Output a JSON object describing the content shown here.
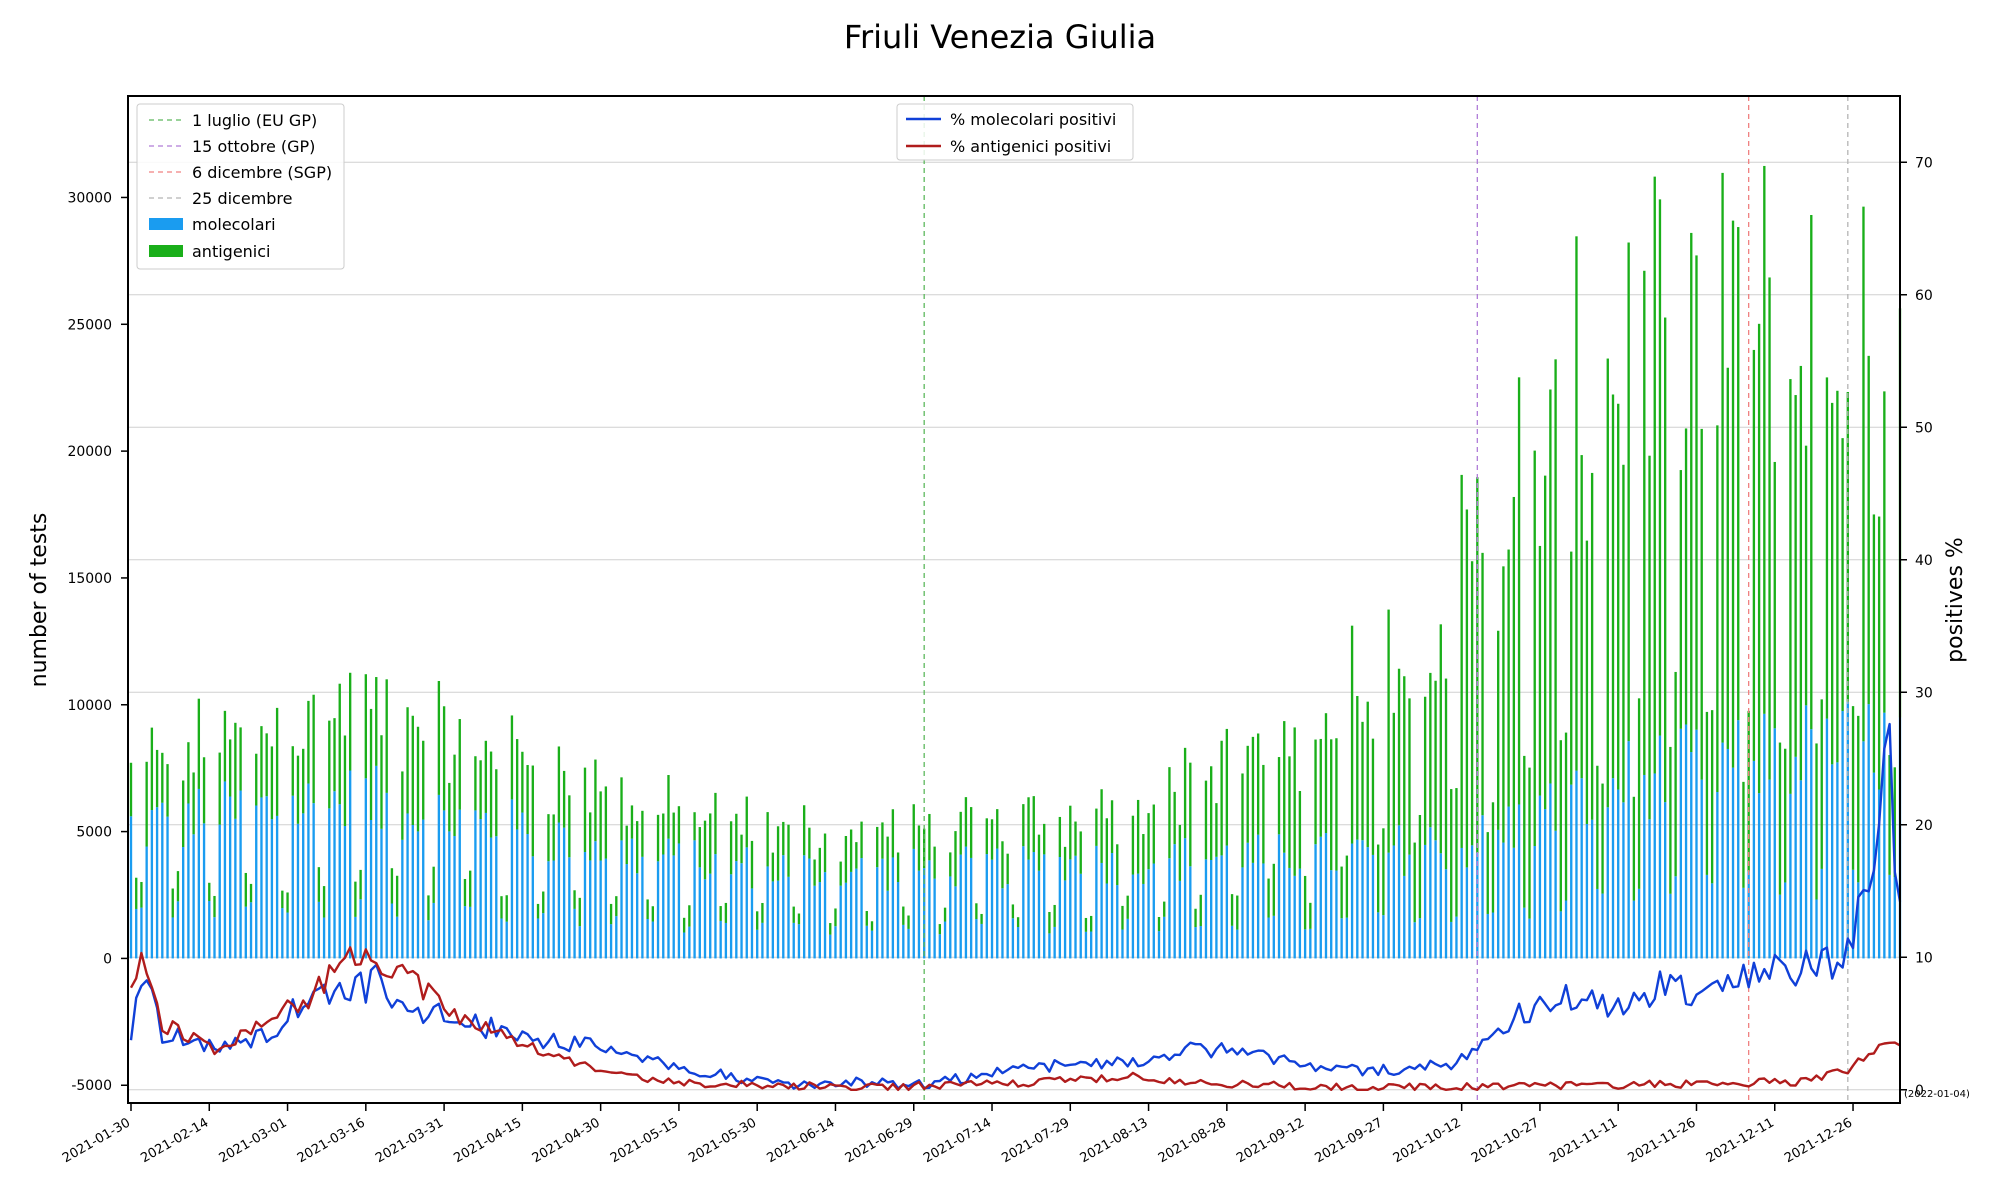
{
  "chart_data": {
    "type": "bar",
    "title": "Friuli Venezia Giulia",
    "ylabel_left": "number of tests",
    "ylabel_right": "positives %",
    "x_start_date": "2021-01-30",
    "x_end_date": "2022-01-04",
    "x_end_note": "(2022-01-04)",
    "x_ticks": [
      "2021-01-30",
      "2021-02-14",
      "2021-03-01",
      "2021-03-16",
      "2021-03-31",
      "2021-04-15",
      "2021-04-30",
      "2021-05-15",
      "2021-05-30",
      "2021-06-14",
      "2021-06-29",
      "2021-07-14",
      "2021-07-29",
      "2021-08-13",
      "2021-08-28",
      "2021-09-12",
      "2021-09-27",
      "2021-10-12",
      "2021-10-27",
      "2021-11-11",
      "2021-11-26",
      "2021-12-11",
      "2021-12-26"
    ],
    "y_left": {
      "ticks": [
        -5000,
        0,
        5000,
        10000,
        15000,
        20000,
        25000,
        30000
      ],
      "lim": [
        -5700,
        34000
      ]
    },
    "y_right": {
      "ticks": [
        0,
        10,
        20,
        30,
        40,
        50,
        60,
        70
      ],
      "lim": [
        -1,
        75
      ]
    },
    "grid": "horizontal",
    "vlines": [
      {
        "label": "1 luglio (EU GP)",
        "date": "2021-07-01",
        "color": "#5cb85c"
      },
      {
        "label": "15 ottobre (GP)",
        "date": "2021-10-15",
        "color": "#b07cd8"
      },
      {
        "label": "6 dicembre (SGP)",
        "date": "2021-12-06",
        "color": "#f08080"
      },
      {
        "label": "25 dicembre",
        "date": "2021-12-25",
        "color": "#b4b4b4"
      }
    ],
    "bar_series": [
      {
        "name": "molecolari",
        "color": "#1a9cf0"
      },
      {
        "name": "antigenici",
        "color": "#1aaf1a"
      }
    ],
    "line_series": [
      {
        "name": "% molecolari positivi",
        "color": "#1040d8"
      },
      {
        "name": "% antigenici positivi",
        "color": "#b01c1c"
      }
    ],
    "legend_left_position": "upper-left",
    "legend_right_position": "upper-center",
    "monthly_avg_molecolari": [
      [
        "2021-01-30",
        5200
      ],
      [
        "2021-02-15",
        5600
      ],
      [
        "2021-03-15",
        6200
      ],
      [
        "2021-04-15",
        5000
      ],
      [
        "2021-05-15",
        3800
      ],
      [
        "2021-06-15",
        3400
      ],
      [
        "2021-07-15",
        3600
      ],
      [
        "2021-08-15",
        3900
      ],
      [
        "2021-09-15",
        4000
      ],
      [
        "2021-10-15",
        4600
      ],
      [
        "2021-11-15",
        7200
      ],
      [
        "2021-12-15",
        8200
      ],
      [
        "2022-01-04",
        8500
      ]
    ],
    "monthly_avg_antigenici": [
      [
        "2021-01-30",
        2500
      ],
      [
        "2021-02-15",
        2800
      ],
      [
        "2021-03-15",
        3600
      ],
      [
        "2021-04-15",
        2800
      ],
      [
        "2021-05-15",
        1800
      ],
      [
        "2021-06-15",
        1500
      ],
      [
        "2021-07-15",
        1600
      ],
      [
        "2021-08-15",
        2500
      ],
      [
        "2021-09-15",
        5000
      ],
      [
        "2021-10-15",
        12000
      ],
      [
        "2021-11-15",
        17000
      ],
      [
        "2021-12-15",
        16000
      ],
      [
        "2022-01-04",
        15000
      ]
    ],
    "pct_molecolari_positivi": [
      [
        "2021-01-30",
        4
      ],
      [
        "2021-02-01",
        9
      ],
      [
        "2021-02-05",
        4
      ],
      [
        "2021-02-10",
        4
      ],
      [
        "2021-02-15",
        3
      ],
      [
        "2021-02-25",
        4
      ],
      [
        "2021-03-05",
        7
      ],
      [
        "2021-03-12",
        8
      ],
      [
        "2021-03-20",
        8
      ],
      [
        "2021-03-25",
        6
      ],
      [
        "2021-04-05",
        5
      ],
      [
        "2021-04-15",
        4
      ],
      [
        "2021-04-25",
        3.5
      ],
      [
        "2021-05-05",
        3
      ],
      [
        "2021-05-15",
        1.5
      ],
      [
        "2021-05-25",
        1
      ],
      [
        "2021-06-05",
        0.5
      ],
      [
        "2021-06-20",
        0.5
      ],
      [
        "2021-07-01",
        0.5
      ],
      [
        "2021-07-10",
        1
      ],
      [
        "2021-07-20",
        1.5
      ],
      [
        "2021-07-30",
        2
      ],
      [
        "2021-08-10",
        2
      ],
      [
        "2021-08-20",
        3
      ],
      [
        "2021-08-30",
        3
      ],
      [
        "2021-09-10",
        2
      ],
      [
        "2021-09-20",
        1.5
      ],
      [
        "2021-09-30",
        1.5
      ],
      [
        "2021-10-10",
        2
      ],
      [
        "2021-10-15",
        3
      ],
      [
        "2021-10-20",
        5
      ],
      [
        "2021-10-30",
        7
      ],
      [
        "2021-11-10",
        6
      ],
      [
        "2021-11-20",
        8
      ],
      [
        "2021-11-30",
        7
      ],
      [
        "2021-12-10",
        9
      ],
      [
        "2021-12-20",
        9
      ],
      [
        "2021-12-30",
        14
      ],
      [
        "2022-01-02",
        26
      ],
      [
        "2022-01-04",
        13
      ]
    ],
    "pct_antigenici_positivi": [
      [
        "2021-01-30",
        8
      ],
      [
        "2021-02-01",
        10
      ],
      [
        "2021-02-05",
        5
      ],
      [
        "2021-02-10",
        4
      ],
      [
        "2021-02-15",
        3
      ],
      [
        "2021-02-25",
        5
      ],
      [
        "2021-03-05",
        7
      ],
      [
        "2021-03-12",
        10
      ],
      [
        "2021-03-20",
        9
      ],
      [
        "2021-03-25",
        8
      ],
      [
        "2021-04-05",
        5
      ],
      [
        "2021-04-12",
        4
      ],
      [
        "2021-04-25",
        2
      ],
      [
        "2021-05-05",
        1
      ],
      [
        "2021-05-15",
        0.5
      ],
      [
        "2021-06-05",
        0.3
      ],
      [
        "2021-06-20",
        0.2
      ],
      [
        "2021-07-01",
        0.3
      ],
      [
        "2021-07-20",
        0.5
      ],
      [
        "2021-08-10",
        1
      ],
      [
        "2021-08-20",
        0.5
      ],
      [
        "2021-09-10",
        0.3
      ],
      [
        "2021-09-30",
        0.2
      ],
      [
        "2021-10-15",
        0.2
      ],
      [
        "2021-10-30",
        0.3
      ],
      [
        "2021-11-15",
        0.4
      ],
      [
        "2021-11-30",
        0.5
      ],
      [
        "2021-12-15",
        0.6
      ],
      [
        "2021-12-25",
        1.5
      ],
      [
        "2022-01-02",
        4
      ],
      [
        "2022-01-04",
        3.5
      ]
    ]
  }
}
